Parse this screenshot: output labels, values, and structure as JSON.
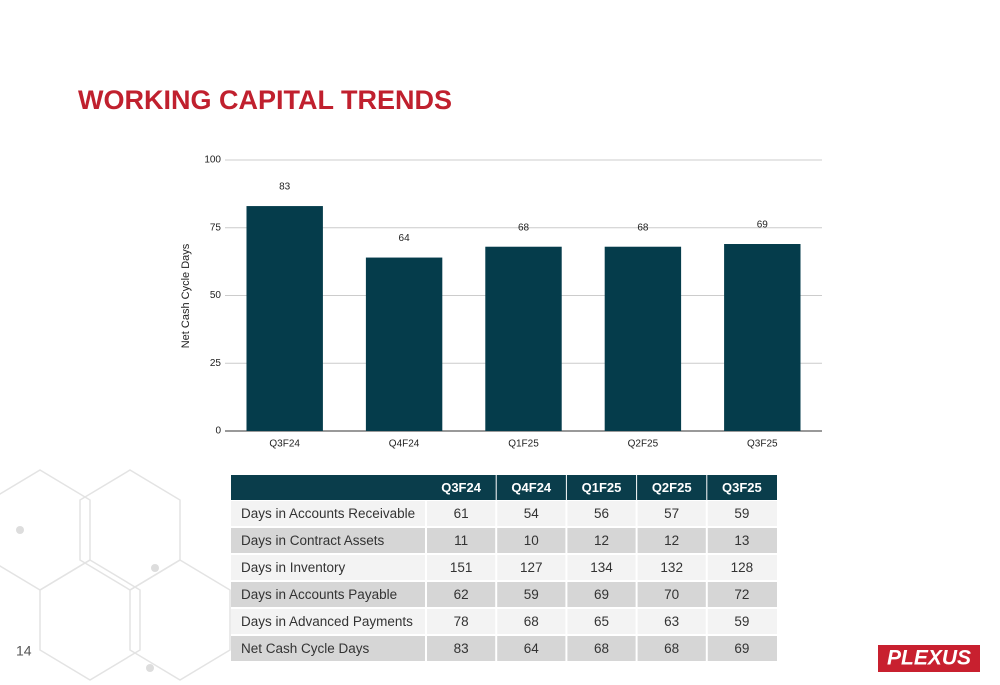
{
  "slide_title": "WORKING CAPITAL TRENDS",
  "chart_data": {
    "type": "bar",
    "y_label": "Net Cash Cycle Days",
    "categories": [
      "Q3F24",
      "Q4F24",
      "Q1F25",
      "Q2F25",
      "Q3F25"
    ],
    "values": [
      83,
      64,
      68,
      68,
      69
    ],
    "color": "#053c4b",
    "ylim": [
      0,
      100
    ],
    "yticks": [
      0,
      25,
      50,
      75,
      100
    ],
    "grid": true
  },
  "table": {
    "header": [
      "Q3F24",
      "Q4F24",
      "Q1F25",
      "Q2F25",
      "Q3F25"
    ],
    "rows": [
      [
        "Days in Accounts Receivable",
        61,
        54,
        56,
        57,
        59
      ],
      [
        "Days in Contract Assets",
        11,
        10,
        12,
        12,
        13
      ],
      [
        "Days in Inventory",
        151,
        127,
        134,
        132,
        128
      ],
      [
        "Days in Accounts Payable",
        62,
        59,
        69,
        70,
        72
      ],
      [
        "Days in Advanced Payments",
        78,
        68,
        65,
        63,
        59
      ],
      [
        "Net Cash Cycle Days",
        83,
        64,
        68,
        68,
        69
      ]
    ]
  },
  "page_number": "14",
  "logo": "PLEXUS"
}
